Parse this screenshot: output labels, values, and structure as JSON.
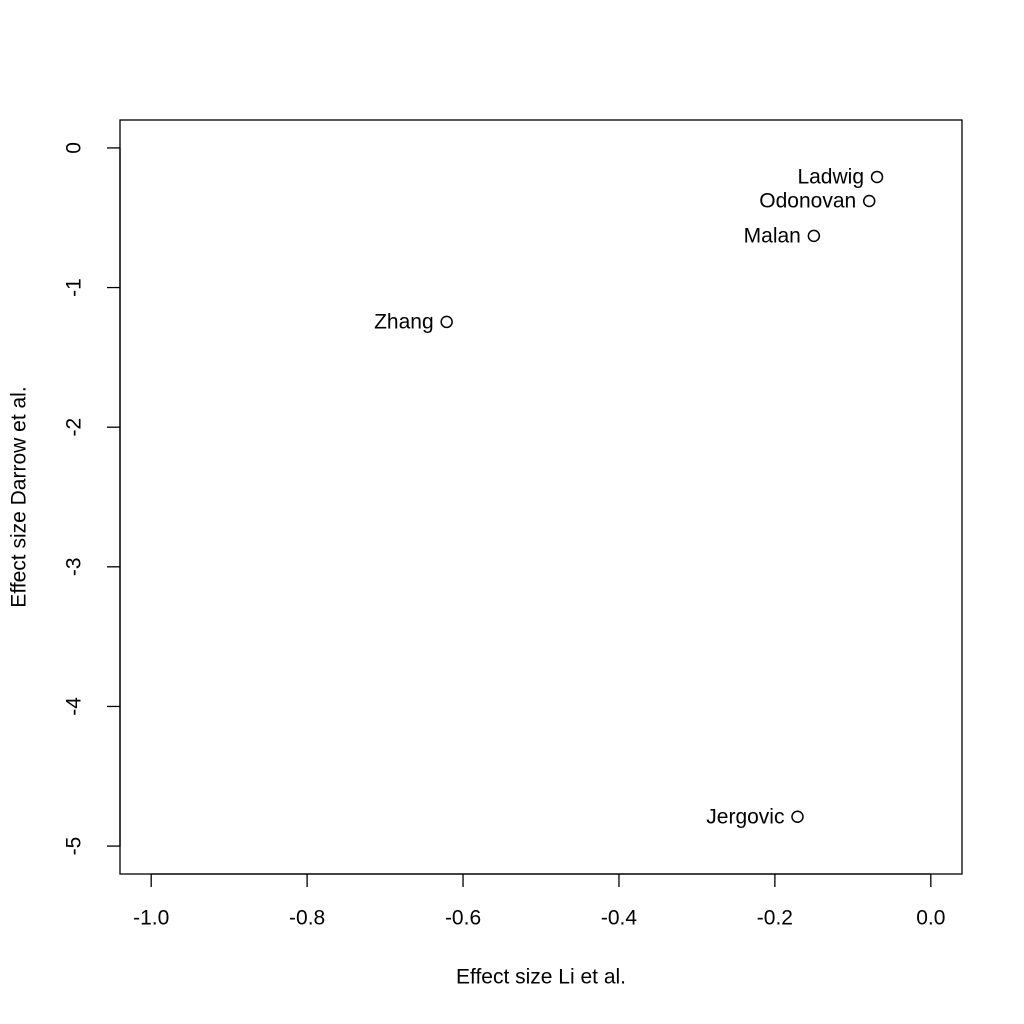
{
  "chart_data": {
    "type": "scatter",
    "x_label": "Effect size Li et al.",
    "y_label": "Effect size Darrow et al.",
    "x": [
      -0.069,
      -0.079,
      -0.15,
      -0.621,
      -0.171
    ],
    "values": [
      -0.208,
      -0.38,
      -0.63,
      -1.246,
      -4.79
    ],
    "labels": [
      "Ladwig",
      "Odonovan",
      "Malan",
      "Zhang",
      "Jergovic"
    ],
    "xlim": [
      -1.04,
      0.04
    ],
    "ylim": [
      -5.2,
      0.2
    ],
    "xticks": [
      {
        "value": -1,
        "label": "-1.0"
      },
      -0.8,
      -0.6,
      -0.4,
      -0.2,
      {
        "value": 0,
        "label": "0.0"
      }
    ],
    "yticks": [
      0,
      -1,
      -2,
      -3,
      -4,
      -5
    ],
    "color": "#000000"
  }
}
